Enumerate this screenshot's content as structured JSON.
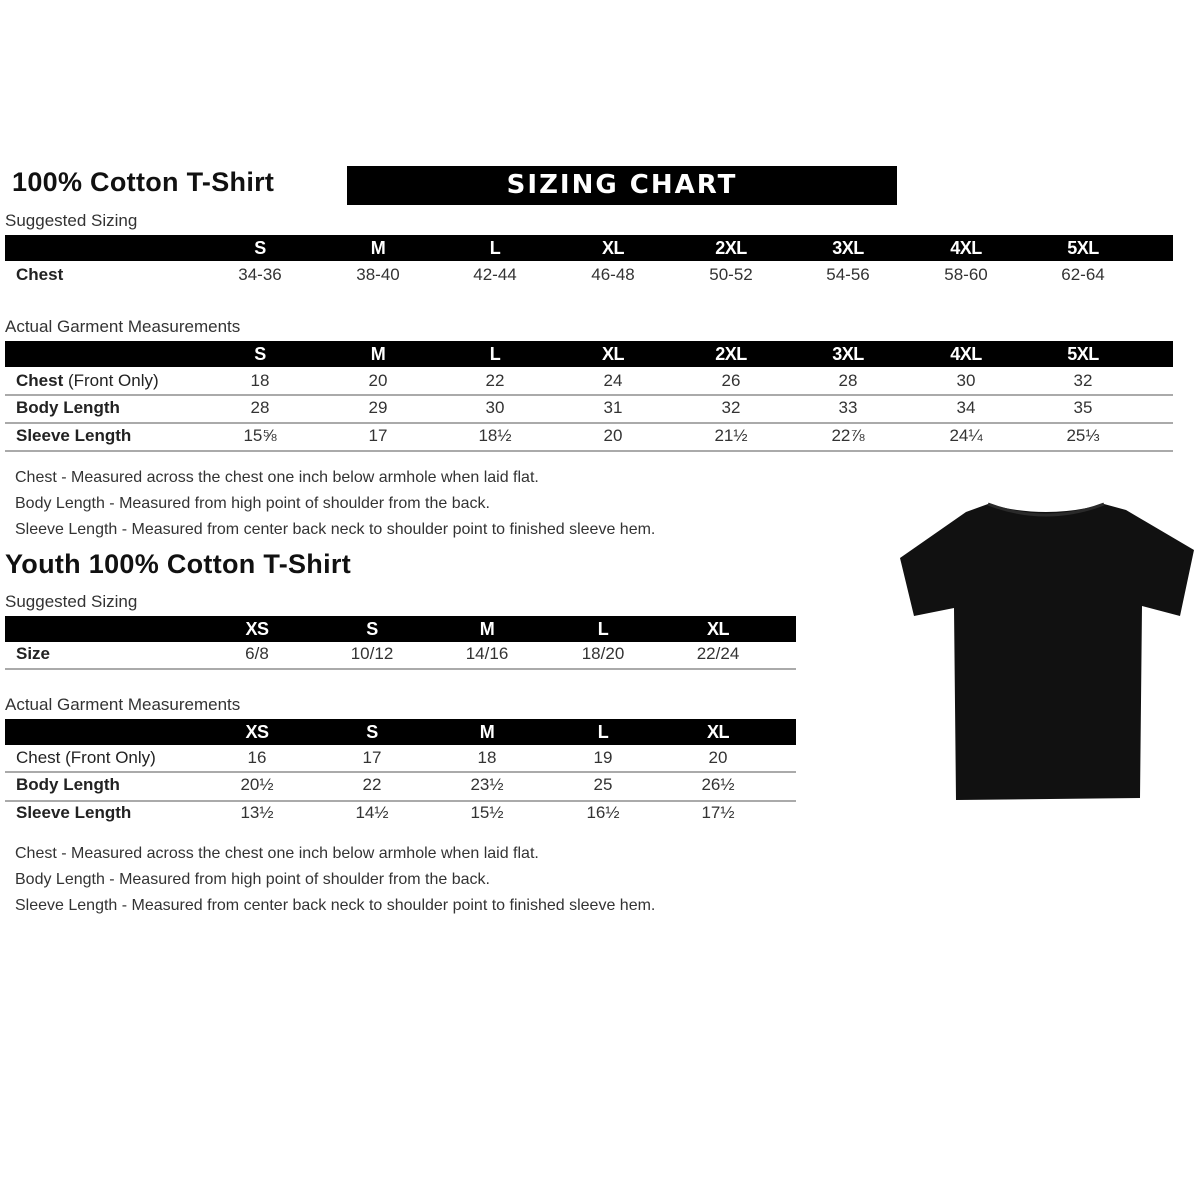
{
  "adult": {
    "title": "100% Cotton T-Shirt",
    "banner": "SIZING CHART",
    "suggested": {
      "label": "Suggested Sizing",
      "sizes": [
        "S",
        "M",
        "L",
        "XL",
        "2XL",
        "3XL",
        "4XL",
        "5XL"
      ],
      "rows": [
        {
          "label": "Chest",
          "values": [
            "34-36",
            "38-40",
            "42-44",
            "46-48",
            "50-52",
            "54-56",
            "58-60",
            "62-64"
          ]
        }
      ]
    },
    "actual": {
      "label": "Actual Garment Measurements",
      "sizes": [
        "S",
        "M",
        "L",
        "XL",
        "2XL",
        "3XL",
        "4XL",
        "5XL"
      ],
      "rows": [
        {
          "label": "Chest",
          "label_note": " (Front Only)",
          "values": [
            "18",
            "20",
            "22",
            "24",
            "26",
            "28",
            "30",
            "32"
          ]
        },
        {
          "label": "Body Length",
          "values": [
            "28",
            "29",
            "30",
            "31",
            "32",
            "33",
            "34",
            "35"
          ]
        },
        {
          "label": "Sleeve Length",
          "values": [
            "15⅝",
            "17",
            "18½",
            "20",
            "21½",
            "22⅞",
            "24¼",
            "25⅓"
          ]
        }
      ]
    },
    "notes": [
      "Chest - Measured across the chest one inch below armhole when laid flat.",
      "Body Length - Measured from high point of shoulder from the back.",
      "Sleeve Length - Measured from center back neck to shoulder point to finished sleeve hem."
    ]
  },
  "youth": {
    "title": "Youth 100% Cotton T-Shirt",
    "suggested": {
      "label": "Suggested Sizing",
      "sizes": [
        "XS",
        "S",
        "M",
        "L",
        "XL"
      ],
      "rows": [
        {
          "label": "Size",
          "values": [
            "6/8",
            "10/12",
            "14/16",
            "18/20",
            "22/24"
          ]
        }
      ]
    },
    "actual": {
      "label": "Actual Garment Measurements",
      "sizes": [
        "XS",
        "S",
        "M",
        "L",
        "XL"
      ],
      "rows": [
        {
          "label": "Chest (Front Only)",
          "values": [
            "16",
            "17",
            "18",
            "19",
            "20"
          ]
        },
        {
          "label": "Body Length",
          "values": [
            "20½",
            "22",
            "23½",
            "25",
            "26½"
          ]
        },
        {
          "label": "Sleeve Length",
          "values": [
            "13½",
            "14½",
            "15½",
            "16½",
            "17½"
          ]
        }
      ]
    },
    "notes": [
      "Chest - Measured across the chest one inch below armhole when laid flat.",
      "Body Length - Measured from high point of shoulder from the back.",
      "Sleeve Length - Measured from center back neck to shoulder point to finished sleeve hem."
    ]
  },
  "image": {
    "icon": "black-tshirt-icon",
    "color": "#111111"
  }
}
